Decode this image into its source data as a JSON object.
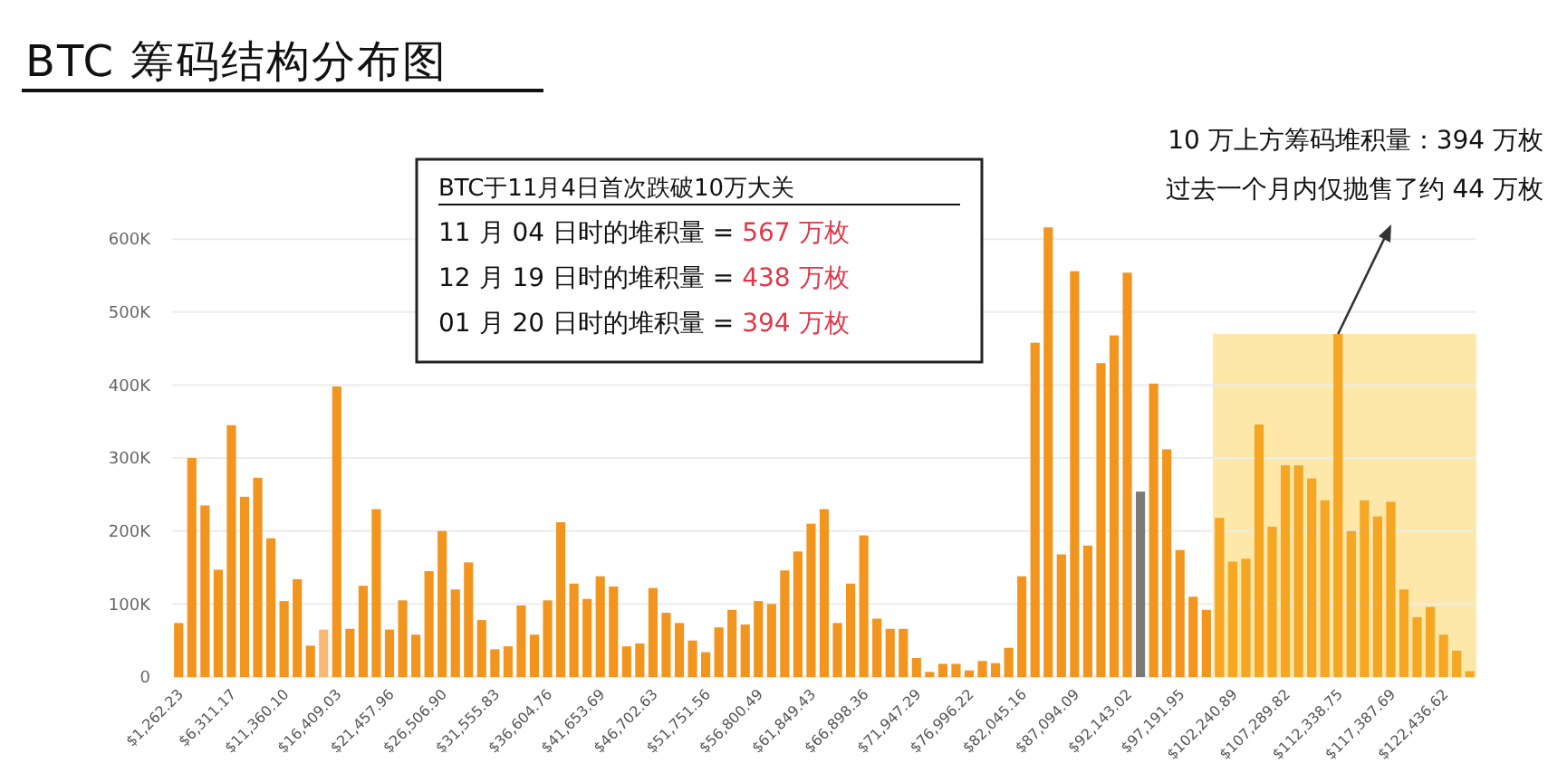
{
  "chart_data": {
    "type": "bar",
    "title": "BTC 筹码结构分布图",
    "categories": [
      "$1,262.23",
      null,
      null,
      null,
      "$6,311.17",
      null,
      null,
      null,
      "$11,360.10",
      null,
      null,
      null,
      "$16,409.03",
      null,
      null,
      null,
      "$21,457.96",
      null,
      null,
      null,
      "$26,506.90",
      null,
      null,
      null,
      "$31,555.83",
      null,
      null,
      null,
      "$36,604.76",
      null,
      null,
      null,
      "$41,653.69",
      null,
      null,
      null,
      "$46,702.63",
      null,
      null,
      null,
      "$51,751.56",
      null,
      null,
      null,
      "$56,800.49",
      null,
      null,
      null,
      "$61,849.43",
      null,
      null,
      null,
      "$66,898.36",
      null,
      null,
      null,
      "$71,947.29",
      null,
      null,
      null,
      "$76,996.22",
      null,
      null,
      null,
      "$82,045.16",
      null,
      null,
      null,
      "$87,094.09",
      null,
      null,
      null,
      "$92,143.02",
      null,
      null,
      null,
      "$97,191.95",
      null,
      null,
      null,
      "$102,240.89",
      null,
      null,
      null,
      "$107,289.82",
      null,
      null,
      null,
      "$112,338.75",
      null,
      null,
      null,
      "$117,387.69",
      null,
      null,
      null,
      "$122,436.62",
      null,
      null
    ],
    "values": [
      74,
      300,
      235,
      147,
      345,
      247,
      273,
      190,
      104,
      134,
      43,
      65,
      398,
      66,
      125,
      230,
      65,
      105,
      58,
      145,
      200,
      120,
      157,
      78,
      38,
      42,
      98,
      58,
      105,
      212,
      128,
      107,
      138,
      124,
      42,
      46,
      122,
      88,
      74,
      50,
      34,
      68,
      92,
      72,
      104,
      100,
      146,
      172,
      210,
      230,
      74,
      128,
      194,
      80,
      66,
      66,
      26,
      7,
      18,
      18,
      9,
      22,
      19,
      40,
      138,
      458,
      616,
      168,
      556,
      180,
      430,
      468,
      554,
      254,
      402,
      312,
      174,
      110,
      92,
      218,
      158,
      162,
      346,
      206,
      290,
      290,
      272,
      242,
      470,
      200,
      242,
      220,
      240,
      120,
      82,
      96,
      58,
      36,
      8
    ],
    "colors": [
      "#f2951f",
      "#f2951f",
      "#f2951f",
      "#f2951f",
      "#f2951f",
      "#f2951f",
      "#f2951f",
      "#f2951f",
      "#f2951f",
      "#f2951f",
      "#f2951f",
      "#f6b874",
      "#f2951f",
      "#f2951f",
      "#f2951f",
      "#f2951f",
      "#f2951f",
      "#f2951f",
      "#f2951f",
      "#f2951f",
      "#f2951f",
      "#f2951f",
      "#f2951f",
      "#f2951f",
      "#f2951f",
      "#f2951f",
      "#f2951f",
      "#f2951f",
      "#f2951f",
      "#f2951f",
      "#f2951f",
      "#f2951f",
      "#f2951f",
      "#f2951f",
      "#f2951f",
      "#f2951f",
      "#f2951f",
      "#f2951f",
      "#f2951f",
      "#f2951f",
      "#f2951f",
      "#f2951f",
      "#f2951f",
      "#f2951f",
      "#f2951f",
      "#f2951f",
      "#f2951f",
      "#f2951f",
      "#f2951f",
      "#f2951f",
      "#f2951f",
      "#f2951f",
      "#f2951f",
      "#f2951f",
      "#f2951f",
      "#f2951f",
      "#f2951f",
      "#f2951f",
      "#f2951f",
      "#f2951f",
      "#f2951f",
      "#f2951f",
      "#f2951f",
      "#f2951f",
      "#f2951f",
      "#f2951f",
      "#f2951f",
      "#f2951f",
      "#f2951f",
      "#f2951f",
      "#f2951f",
      "#f2951f",
      "#f2951f",
      "#7a7a7a",
      "#f2951f",
      "#f2951f",
      "#f2951f",
      "#f2951f",
      "#f2951f",
      "#f5a623",
      "#f5a623",
      "#f5a623",
      "#f5a623",
      "#f5a623",
      "#f5a623",
      "#f5a623",
      "#f5a623",
      "#f5a623",
      "#f5a623",
      "#f5a623",
      "#f5a623",
      "#f5a623",
      "#f5a623",
      "#f5a623",
      "#f5a623",
      "#f5a623",
      "#f5a623",
      "#f5a623",
      "#f5a623"
    ],
    "ylim": [
      0,
      620
    ],
    "yticks": [
      {
        "value": 0,
        "label": "0"
      },
      {
        "value": 100,
        "label": "100K"
      },
      {
        "value": 200,
        "label": "200K"
      },
      {
        "value": 300,
        "label": "300K"
      },
      {
        "value": 400,
        "label": "400K"
      },
      {
        "value": 500,
        "label": "500K"
      },
      {
        "value": 600,
        "label": "600K"
      }
    ],
    "grid": "y",
    "annotations": [
      "BTC于11月4日首次跌破10万大关",
      "11 月 04 日时的堆积量 = 567 万枚",
      "12 月 19 日时的堆积量 = 438 万枚",
      "01 月 20 日时的堆积量 = 394 万枚",
      "10 万上方筹码堆积量：394 万枚",
      {
        "text": "过去一个月内仅抛售了约 44 万枚",
        "x": "$112,338.75",
        "y": 470
      }
    ]
  }
}
